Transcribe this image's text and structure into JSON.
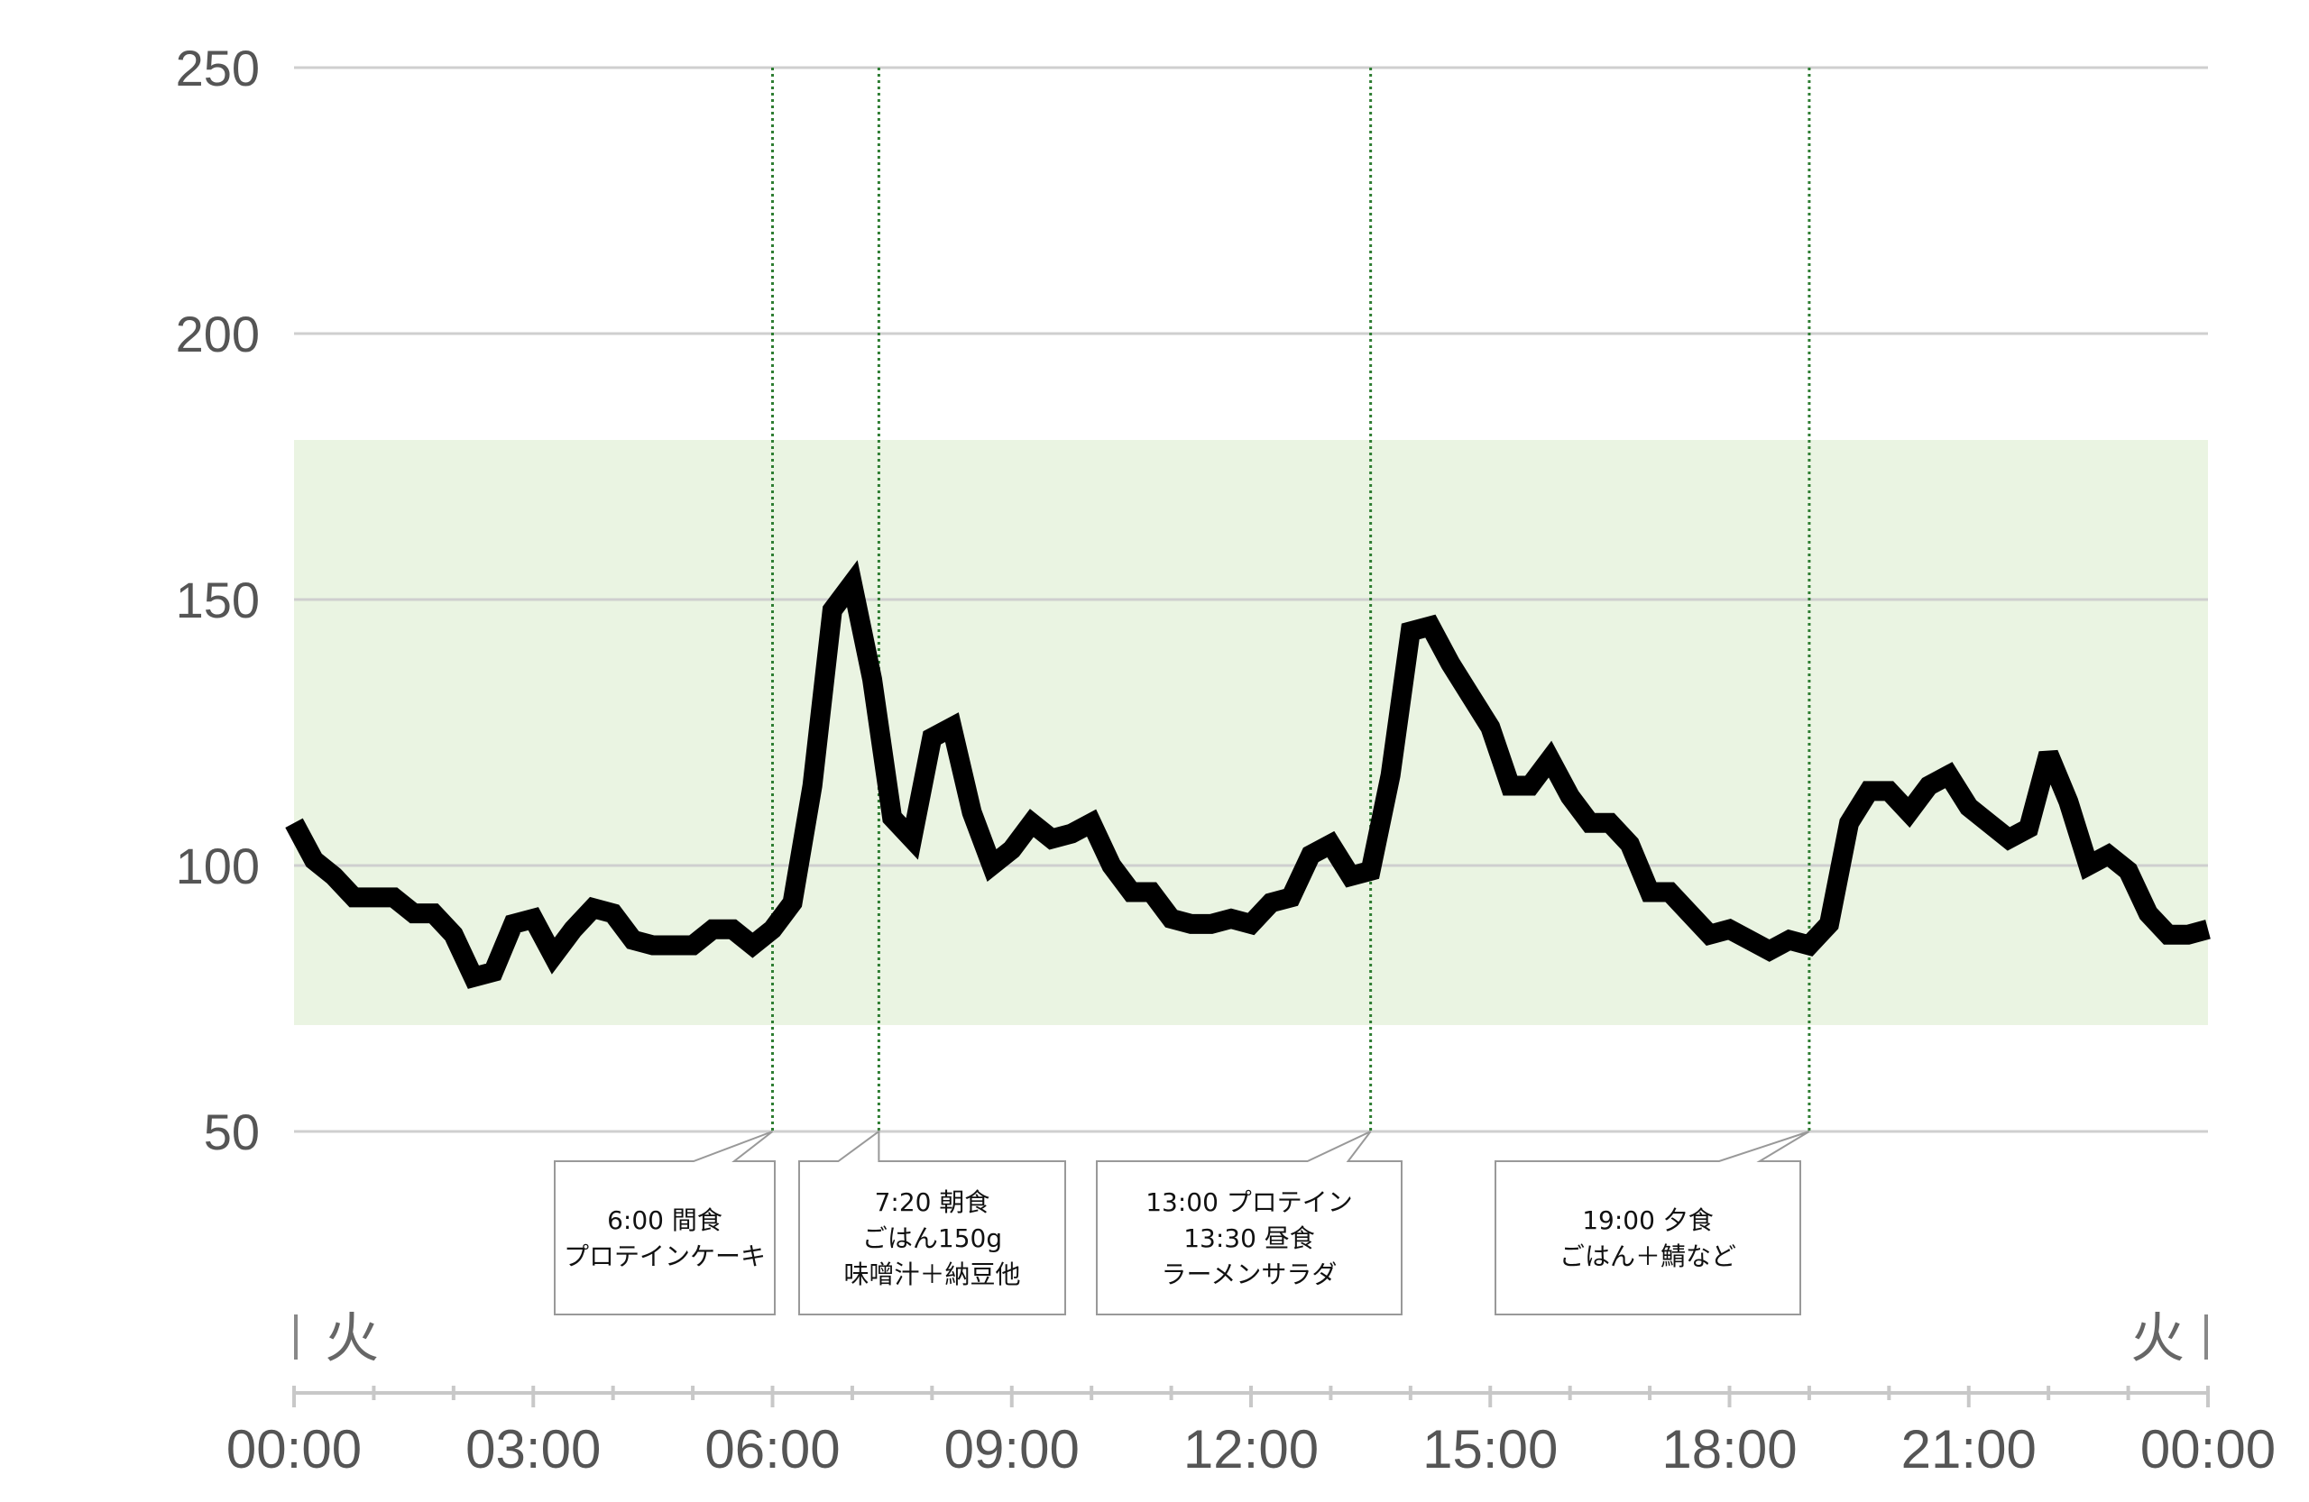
{
  "chart_data": {
    "type": "line",
    "title": "",
    "xlabel": "",
    "ylabel": "",
    "ylim": [
      0,
      250
    ],
    "yticks": [
      50,
      100,
      150,
      200,
      250
    ],
    "xlim": [
      "00:00",
      "24:00"
    ],
    "xtick_labels": [
      "00:00",
      "03:00",
      "06:00",
      "09:00",
      "12:00",
      "15:00",
      "18:00",
      "21:00",
      "00:00"
    ],
    "day_labels": [
      "火",
      "火"
    ],
    "target_range": [
      70,
      180
    ],
    "grid": "horizontal",
    "series": [
      {
        "x": [
          "00:00",
          "00:15",
          "00:30",
          "00:45",
          "01:00",
          "01:15",
          "01:30",
          "01:45",
          "02:00",
          "02:15",
          "02:30",
          "02:45",
          "03:00",
          "03:15",
          "03:30",
          "03:45",
          "04:00",
          "04:15",
          "04:30",
          "04:45",
          "05:00",
          "05:15",
          "05:30",
          "05:45",
          "06:00",
          "06:15",
          "06:30",
          "06:45",
          "07:00",
          "07:15",
          "07:30",
          "07:45",
          "08:00",
          "08:15",
          "08:30",
          "08:45",
          "09:00",
          "09:15",
          "09:30",
          "09:45",
          "10:00",
          "10:15",
          "10:30",
          "10:45",
          "11:00",
          "11:15",
          "11:30",
          "11:45",
          "12:00",
          "12:15",
          "12:30",
          "12:45",
          "13:00",
          "13:15",
          "13:30",
          "13:45",
          "14:00",
          "14:15",
          "14:30",
          "14:45",
          "15:00",
          "15:15",
          "15:30",
          "15:45",
          "16:00",
          "16:15",
          "16:30",
          "16:45",
          "17:00",
          "17:15",
          "17:30",
          "17:45",
          "18:00",
          "18:15",
          "18:30",
          "18:45",
          "19:00",
          "19:15",
          "19:30",
          "19:45",
          "20:00",
          "20:15",
          "20:30",
          "20:45",
          "21:00",
          "21:15",
          "21:30",
          "21:45",
          "22:00",
          "22:15",
          "22:30",
          "22:45",
          "23:00",
          "23:15",
          "23:30",
          "23:45",
          "24:00"
        ],
        "y": [
          108,
          101,
          98,
          94,
          94,
          94,
          91,
          91,
          87,
          79,
          80,
          89,
          90,
          83,
          88,
          92,
          91,
          86,
          85,
          85,
          85,
          88,
          88,
          85,
          88,
          93,
          115,
          148,
          153,
          135,
          109,
          105,
          124,
          126,
          110,
          100,
          103,
          108,
          105,
          106,
          108,
          100,
          95,
          95,
          90,
          89,
          89,
          90,
          89,
          93,
          94,
          102,
          104,
          98,
          99,
          117,
          144,
          145,
          138,
          132,
          126,
          115,
          115,
          120,
          113,
          108,
          108,
          104,
          95,
          95,
          91,
          87,
          88,
          86,
          84,
          86,
          85,
          89,
          108,
          114,
          114,
          110,
          115,
          117,
          111,
          108,
          105,
          107,
          121,
          112,
          100,
          102,
          99,
          91,
          87,
          87,
          88
        ]
      }
    ],
    "annotations": [
      {
        "time": "06:00",
        "lines": [
          "6:00 間食",
          "プロテインケーキ"
        ]
      },
      {
        "time": "07:20",
        "lines": [
          "7:20 朝食",
          "ごはん150g",
          "味噌汁＋納豆他"
        ]
      },
      {
        "time": "13:30",
        "lines": [
          "13:00 プロテイン",
          "13:30 昼食",
          "ラーメンサラダ"
        ]
      },
      {
        "time": "19:00",
        "lines": [
          "19:00 夕食",
          "ごはん＋鯖など"
        ]
      }
    ],
    "colors": {
      "line": "#000000",
      "target_band": "#eaf4e2",
      "grid": "#cfcfcf",
      "marker_line": "#2e7d32",
      "axis": "#c8c8c8"
    }
  }
}
